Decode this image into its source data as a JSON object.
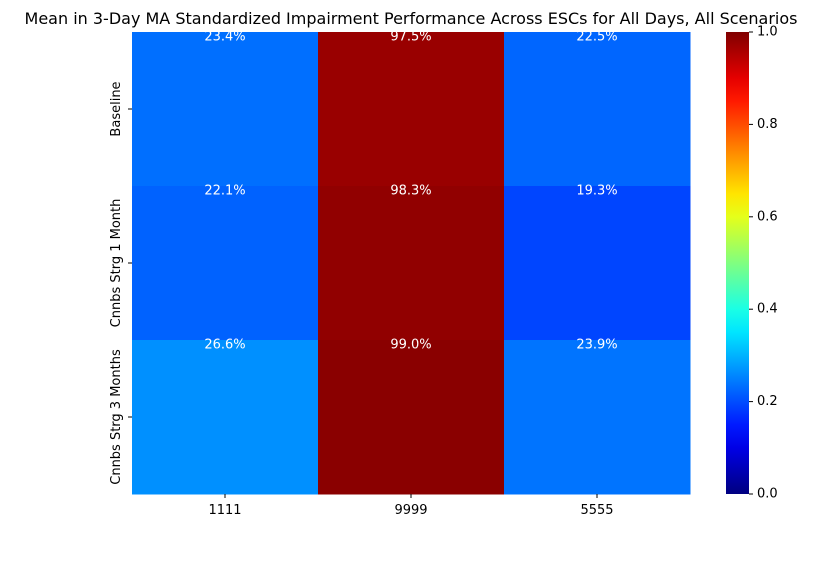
{
  "chart_data": {
    "type": "heatmap",
    "title": "Mean in 3-Day MA Standardized Impairment Performance Across ESCs for All Days, All Scenarios",
    "x_categories": [
      "1111",
      "9999",
      "5555"
    ],
    "y_categories": [
      "Baseline",
      "Cnnbs Strg 1 Month",
      "Cnnbs Strg 3 Months"
    ],
    "values": [
      [
        0.234,
        0.975,
        0.225
      ],
      [
        0.221,
        0.983,
        0.193
      ],
      [
        0.266,
        0.99,
        0.239
      ]
    ],
    "cell_labels": [
      [
        "23.4%",
        "97.5%",
        "22.5%"
      ],
      [
        "22.1%",
        "98.3%",
        "19.3%"
      ],
      [
        "26.6%",
        "99.0%",
        "23.9%"
      ]
    ],
    "colormap": "jet",
    "color_range": [
      0,
      1
    ],
    "colorbar_ticks": [
      "0.0",
      "0.2",
      "0.4",
      "0.6",
      "0.8",
      "1.0"
    ],
    "colorbar_tick_values": [
      0,
      0.2,
      0.4,
      0.6,
      0.8,
      1.0
    ],
    "xlabel": "",
    "ylabel": "",
    "label_color": "#ffffff",
    "text_color": "#000000"
  }
}
